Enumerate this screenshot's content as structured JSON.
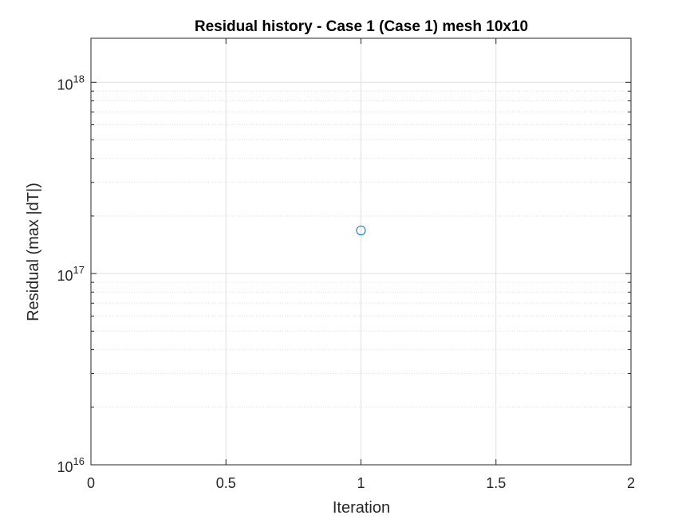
{
  "chart_data": {
    "type": "scatter",
    "title": "Residual history - Case 1 (Case 1) mesh 10x10",
    "xlabel": "Iteration",
    "ylabel": "Residual (max |dT|)",
    "xlim": [
      0,
      2
    ],
    "ylim": [
      1e+16,
      1.7e+18
    ],
    "yscale": "log",
    "xticks": [
      0,
      0.5,
      1,
      1.5,
      2
    ],
    "xtick_labels": [
      "0",
      "0.5",
      "1",
      "1.5",
      "2"
    ],
    "yticks": [
      1e+16,
      1e+17,
      1e+18
    ],
    "ytick_labels": [
      {
        "base": "10",
        "exp": "16"
      },
      {
        "base": "10",
        "exp": "17"
      },
      {
        "base": "10",
        "exp": "18"
      }
    ],
    "grid": true,
    "minor_grid": true,
    "marker": "circle",
    "series": [
      {
        "x": [
          1
        ],
        "y": [
          1.68e+17
        ],
        "color": "#0072BD"
      }
    ]
  },
  "colors": {
    "axis": "#262626",
    "grid": "#dfdfdf",
    "background": "#ffffff"
  }
}
